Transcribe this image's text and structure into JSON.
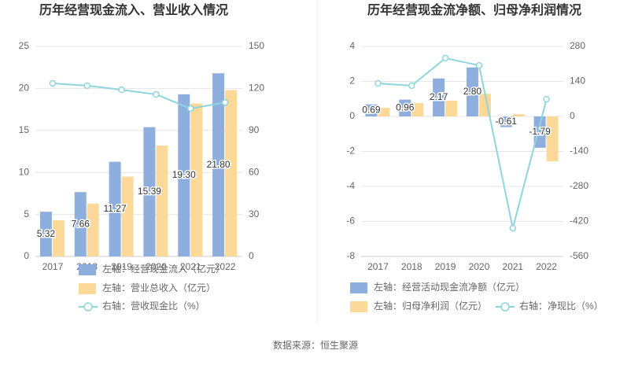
{
  "chart_data": [
    {
      "type": "combo",
      "title": "历年经营现金流入、营业收入情况",
      "categories": [
        "2017",
        "2018",
        "2019",
        "2020",
        "2021",
        "2022"
      ],
      "ylim": [
        0,
        25
      ],
      "yticks": [
        0,
        5,
        10,
        15,
        20,
        25
      ],
      "y2lim": [
        0,
        150
      ],
      "y2ticks": [
        0,
        30,
        60,
        90,
        120,
        150
      ],
      "grid": true,
      "series": [
        {
          "name": "左轴：经营现金流入（亿元）",
          "kind": "bar",
          "color": "#8eaedd",
          "values": [
            5.32,
            7.66,
            11.27,
            15.39,
            19.3,
            21.8
          ],
          "value_labels": [
            "5.32",
            "7.66",
            "11.27",
            "15.39",
            "19.30",
            "21.80"
          ]
        },
        {
          "name": "左轴：营业总收入（亿元）",
          "kind": "bar",
          "color": "#fcd899",
          "values": [
            4.3,
            6.3,
            9.5,
            13.2,
            18.2,
            19.8
          ]
        },
        {
          "name": "右轴：营收现金比（%）",
          "kind": "line",
          "axis": "y2",
          "color": "#8ed6dc",
          "values": [
            123.6,
            122,
            119,
            115.7,
            105.6,
            110
          ]
        }
      ]
    },
    {
      "type": "combo",
      "title": "历年经营现金流净额、归母净利润情况",
      "categories": [
        "2017",
        "2018",
        "2019",
        "2020",
        "2021",
        "2022"
      ],
      "ylim": [
        -8,
        4
      ],
      "yticks": [
        -8,
        -6,
        -4,
        -2,
        0,
        2,
        4
      ],
      "y2lim": [
        -560,
        280
      ],
      "y2ticks": [
        -560,
        -420,
        -280,
        -140,
        0,
        140,
        280
      ],
      "grid": true,
      "series": [
        {
          "name": "左轴：经营活动现金流净额（亿元）",
          "kind": "bar",
          "color": "#8eaedd",
          "values": [
            0.69,
            0.96,
            2.17,
            2.8,
            -0.61,
            -1.79
          ],
          "value_labels": [
            "0.69",
            "0.96",
            "2.17",
            "2.80",
            "-0.61",
            "-1.79"
          ]
        },
        {
          "name": "左轴：归母净利润（亿元）",
          "kind": "bar",
          "color": "#fcd899",
          "values": [
            0.49,
            0.76,
            0.9,
            1.3,
            0.13,
            -2.56
          ]
        },
        {
          "name": "右轴：净现比（%）",
          "kind": "line",
          "axis": "y2",
          "color": "#8ed6dc",
          "values": [
            132,
            123,
            233,
            204,
            -447,
            69
          ]
        }
      ]
    }
  ],
  "footer": "数据来源：恒生聚源"
}
